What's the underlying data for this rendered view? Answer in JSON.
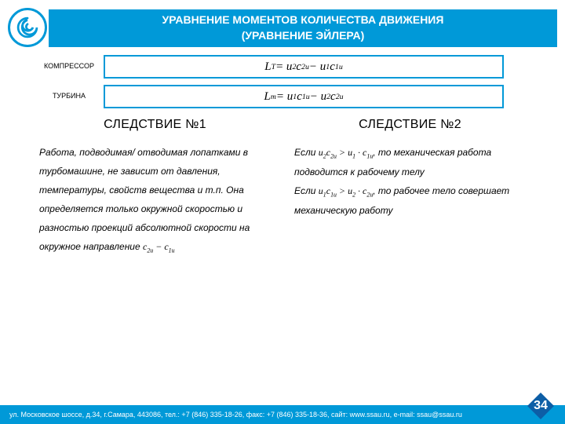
{
  "colors": {
    "primary": "#0099d8",
    "badge": "#0d5ea6",
    "white": "#ffffff"
  },
  "title": {
    "line1": "УРАВНЕНИЕ МОМЕНТОВ КОЛИЧЕСТВА ДВИЖЕНИЯ",
    "line2": "(УРАВНЕНИЕ ЭЙЛЕРА)"
  },
  "equations": {
    "compressor": {
      "label": "КОМПРЕССОР",
      "formula_html": "L<span class='subscript'>T</span> = u<span class='subscript'>2</span>c<span class='subscript'>2u</span> − u<span class='subscript'>1</span>c<span class='subscript'>1u</span>"
    },
    "turbine": {
      "label": "ТУРБИНА",
      "formula_html": "L<span class='subscript'>т</span> = u<span class='subscript'>1</span>c<span class='subscript'>1u</span> − u<span class='subscript'>2</span>c<span class='subscript'>2u</span>"
    }
  },
  "columns": {
    "left": {
      "title": "СЛЕДСТВИЕ №1",
      "body_html": "Работа, подводимая/ отводимая лопатками в турбомашине, не зависит от давления, температуры, свойств вещества и т.п. Она определяется только окружной скоростью и разностью проекций абсолютной скорости на окружное направление <span class='mathpart'>c<span class='subscript'>2u</span> − c<span class='subscript'>1u</span></span>"
    },
    "right": {
      "title": "СЛЕДСТВИЕ №2",
      "body_html": "Если <span class='mathpart'>u<span class='subscript'>2</span>c<span class='subscript'>2u</span> &gt; u<span class='subscript'>1</span> · c<span class='subscript'>1u</span></span>, то механическая работа подводится к рабочему телу<br>Если <span class='mathpart'>u<span class='subscript'>1</span>c<span class='subscript'>1u</span> &gt; u<span class='subscript'>2</span> · c<span class='subscript'>2u</span></span>, то рабочее тело совершает механическую работу"
    }
  },
  "footer": "ул. Московское шоссе, д.34, г.Самара, 443086, тел.: +7 (846) 335-18-26, факс: +7 (846) 335-18-36, сайт: www.ssau.ru, e-mail: ssau@ssau.ru",
  "page_number": "34"
}
